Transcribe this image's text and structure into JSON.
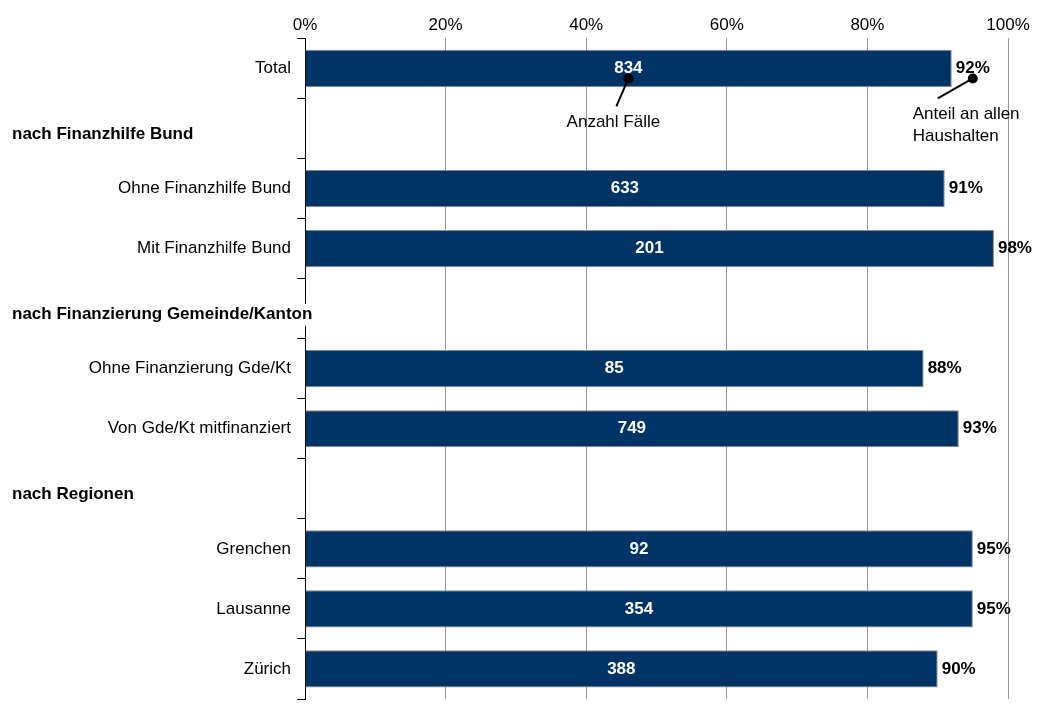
{
  "chart_data": {
    "type": "bar",
    "orientation": "horizontal",
    "categories": [
      "Total",
      null,
      "Ohne Finanzhilfe Bund",
      "Mit Finanzhilfe Bund",
      null,
      "Ohne Finanzierung Gde/Kt",
      "Von Gde/Kt mitfinanziert",
      null,
      "Grenchen",
      "Lausanne",
      "Zürich"
    ],
    "values": [
      92,
      null,
      91,
      98,
      null,
      88,
      93,
      null,
      95,
      95,
      90
    ],
    "value_labels": [
      "92%",
      null,
      "91%",
      "98%",
      null,
      "88%",
      "93%",
      null,
      "95%",
      "95%",
      "90%"
    ],
    "color": "#003366",
    "xlim": [
      0,
      100
    ],
    "xticks": [
      {
        "value": 0,
        "label": "0%"
      },
      {
        "value": 20,
        "label": "20%"
      },
      {
        "value": 40,
        "label": "40%"
      },
      {
        "value": 60,
        "label": "60%"
      },
      {
        "value": 80,
        "label": "80%"
      },
      {
        "value": 100,
        "label": "100%"
      }
    ],
    "grid": "x",
    "legend": false,
    "annotations": [
      "834",
      "633",
      "201",
      "85",
      "749",
      "92",
      "354",
      "388",
      "nach Finanzhilfe Bund",
      "nach Finanzierung Gemeinde/Kanton",
      "nach Regionen",
      "Anzahl Fälle",
      "Anteil an allen Haushalten"
    ]
  }
}
